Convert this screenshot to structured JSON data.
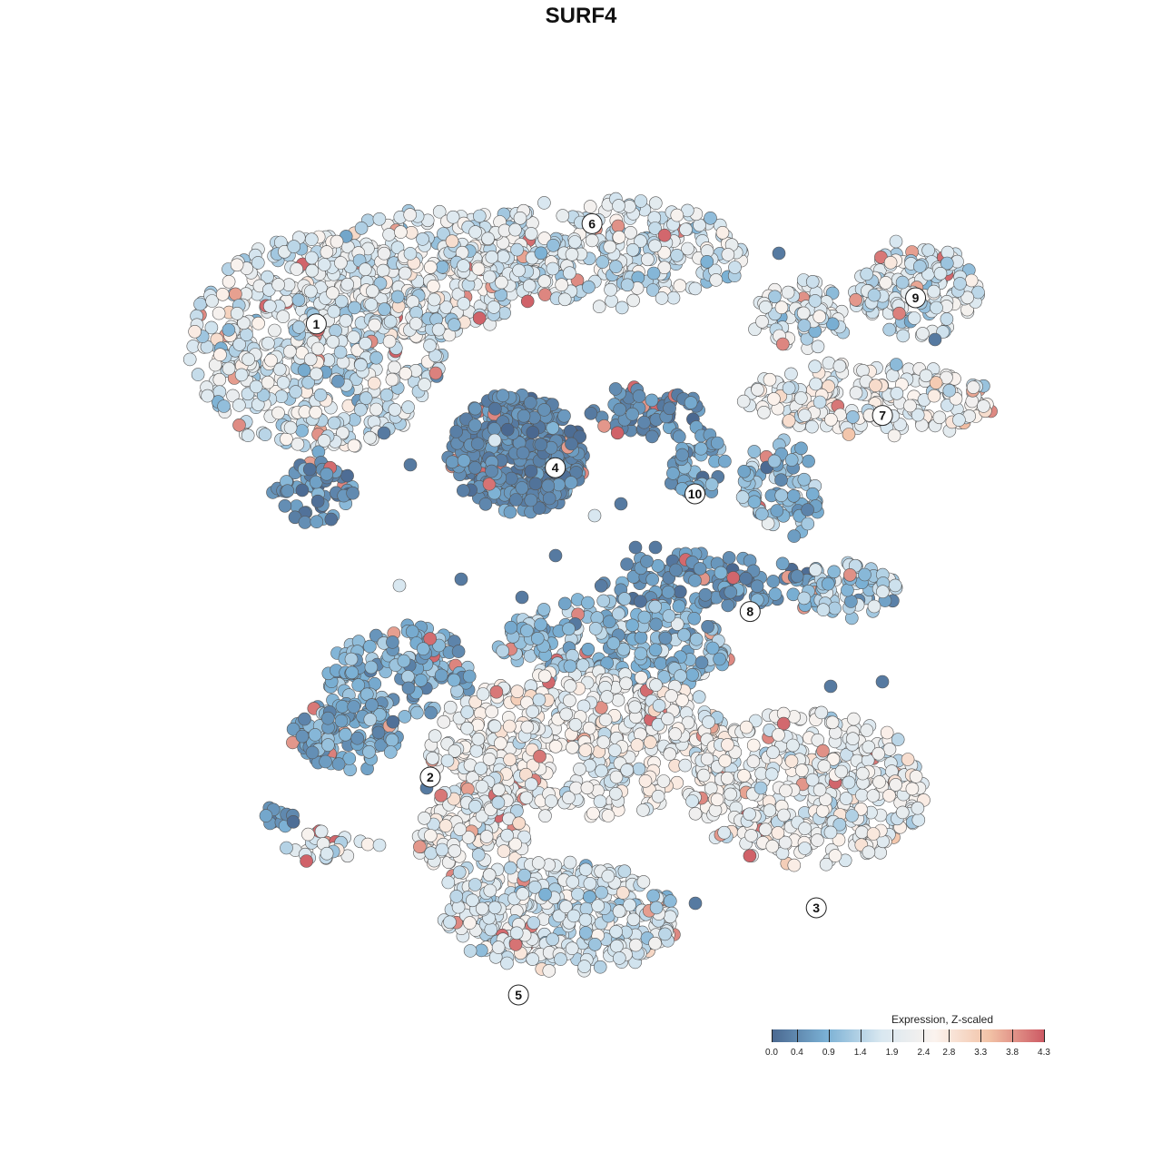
{
  "chart_data": {
    "type": "scatter",
    "title": "SURF4",
    "xlabel": "",
    "ylabel": "",
    "grid": false,
    "legend": {
      "title": "Expression, Z-scaled",
      "placement": "bottom-right",
      "range": [
        0.0,
        4.3
      ],
      "ticks": [
        "0.0",
        "0.4",
        "0.9",
        "1.4",
        "1.9",
        "2.4",
        "2.8",
        "3.3",
        "3.8",
        "4.3"
      ],
      "colors": [
        "#4a6890",
        "#7ab0d4",
        "#d8e7f0",
        "#fbf3ee",
        "#f2c2a6",
        "#cd5a64"
      ]
    },
    "clusters": [
      {
        "label": "1",
        "x": -0.72,
        "y": 0.59
      },
      {
        "label": "2",
        "x": -0.41,
        "y": -0.45
      },
      {
        "label": "3",
        "x": 0.64,
        "y": -0.75
      },
      {
        "label": "4",
        "x": -0.07,
        "y": 0.26
      },
      {
        "label": "5",
        "x": -0.17,
        "y": -0.95
      },
      {
        "label": "6",
        "x": 0.03,
        "y": 0.82
      },
      {
        "label": "7",
        "x": 0.82,
        "y": 0.38
      },
      {
        "label": "8",
        "x": 0.46,
        "y": -0.07
      },
      {
        "label": "9",
        "x": 0.91,
        "y": 0.65
      },
      {
        "label": "10",
        "x": 0.31,
        "y": 0.2
      }
    ]
  }
}
